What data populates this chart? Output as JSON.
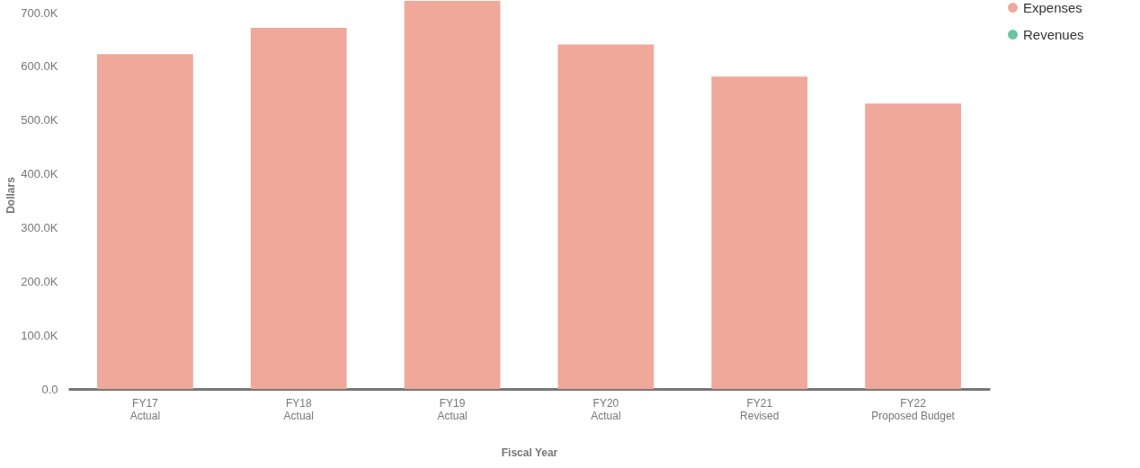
{
  "chart_data": {
    "type": "bar",
    "xlabel": "Fiscal Year",
    "ylabel": "Dollars",
    "categories": [
      "FY17\nActual",
      "FY18\nActual",
      "FY19\nActual",
      "FY20\nActual",
      "FY21\nRevised",
      "FY22\nProposed Budget"
    ],
    "series": [
      {
        "name": "Expenses",
        "color": "#efa899",
        "values": [
          623000,
          672000,
          722000,
          641000,
          581000,
          531000
        ]
      },
      {
        "name": "Revenues",
        "color": "#6cc3a0",
        "values": [
          null,
          null,
          null,
          null,
          null,
          null
        ]
      }
    ],
    "ylim": [
      0,
      722000
    ],
    "yticks": [
      {
        "value": 0,
        "label": "0.0"
      },
      {
        "value": 100000,
        "label": "100.0K"
      },
      {
        "value": 200000,
        "label": "200.0K"
      },
      {
        "value": 300000,
        "label": "300.0K"
      },
      {
        "value": 400000,
        "label": "400.0K"
      },
      {
        "value": 500000,
        "label": "500.0K"
      },
      {
        "value": 600000,
        "label": "600.0K"
      },
      {
        "value": 700000,
        "label": "700.0K"
      }
    ],
    "grid": false,
    "legend": "top right"
  }
}
